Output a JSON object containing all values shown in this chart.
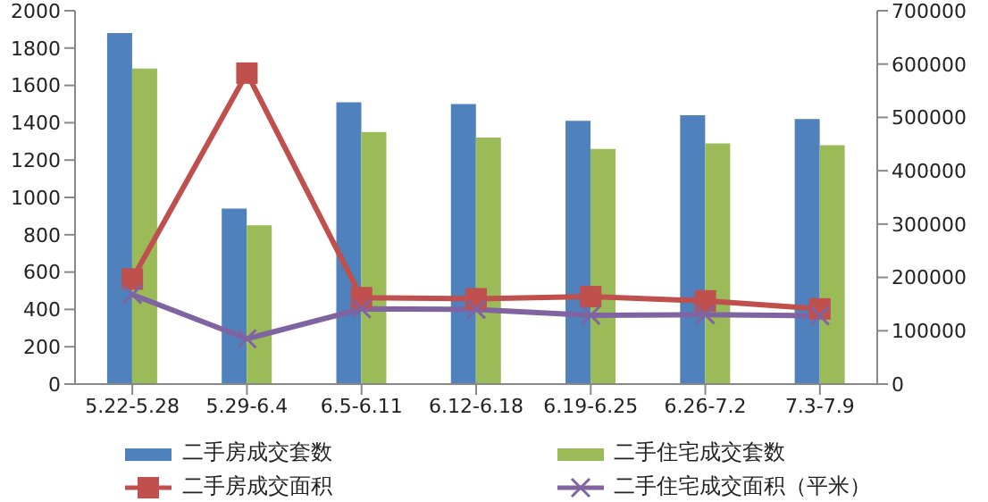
{
  "chart_data": {
    "type": "bar",
    "categories": [
      "5.22-5.28",
      "5.29-6.4",
      "6.5-6.11",
      "6.12-6.18",
      "6.19-6.25",
      "6.26-7.2",
      "7.3-7.9"
    ],
    "series": [
      {
        "name": "二手房成交套数",
        "color": "#4f81bd",
        "values": [
          1880,
          940,
          1510,
          1500,
          1410,
          1440,
          1420
        ]
      },
      {
        "name": "二手住宅成交套数",
        "color": "#9bbb59",
        "values": [
          1690,
          850,
          1350,
          1320,
          1260,
          1290,
          1280
        ]
      },
      {
        "name": "二手房成交面积",
        "type": "line",
        "axis": "y2",
        "marker": "square",
        "color": "#c0504d",
        "values": [
          197000,
          583000,
          162000,
          160000,
          164000,
          156000,
          141000
        ]
      },
      {
        "name": "二手住宅成交面积（平米）",
        "type": "line",
        "axis": "y2",
        "marker": "cross",
        "color": "#8064a2",
        "values": [
          168000,
          85000,
          141000,
          140000,
          129000,
          130000,
          128000
        ]
      }
    ],
    "ylim": [
      0,
      2000
    ],
    "yticks": [
      0,
      200,
      400,
      600,
      800,
      1000,
      1200,
      1400,
      1600,
      1800,
      2000
    ],
    "y2lim": [
      0,
      700000
    ],
    "y2ticks": [
      0,
      100000,
      200000,
      300000,
      400000,
      500000,
      600000,
      700000
    ],
    "legend": "bottom",
    "grid": false
  }
}
